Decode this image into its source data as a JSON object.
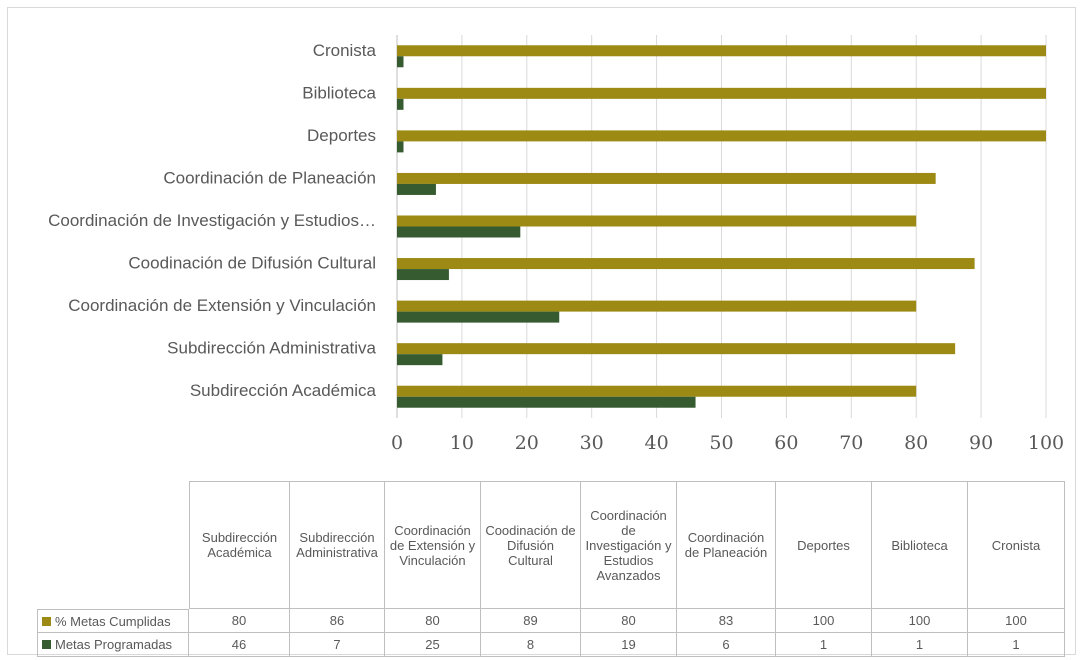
{
  "chart_data": {
    "type": "bar",
    "orientation": "horizontal",
    "categories": [
      "Subdirección Académica",
      "Subdirección Administrativa",
      "Coordinación de Extensión y Vinculación",
      "Coodinación de Difusión Cultural",
      "Coordinación de Investigación y Estudios Avanzados",
      "Coordinación de Planeación",
      "Deportes",
      "Biblioteca",
      "Cronista"
    ],
    "axis_labels": [
      "Subdirección Académica",
      "Subdirección Administrativa",
      "Coordinación de Extensión y Vinculación",
      "Coodinación de Difusión Cultural",
      "Coordinación de Investigación y Estudios…",
      "Coordinación de Planeación",
      "Deportes",
      "Biblioteca",
      "Cronista"
    ],
    "series": [
      {
        "name": "% Metas Cumplidas",
        "color": "#9c8a14",
        "values": [
          80,
          86,
          80,
          89,
          80,
          83,
          100,
          100,
          100
        ]
      },
      {
        "name": "Metas Programadas",
        "color": "#375b30",
        "values": [
          46,
          7,
          25,
          8,
          19,
          6,
          1,
          1,
          1
        ]
      }
    ],
    "xlim": [
      0,
      100
    ],
    "xticks": [
      0,
      10,
      20,
      30,
      40,
      50,
      60,
      70,
      80,
      90,
      100
    ],
    "grid": true,
    "data_table": true
  }
}
